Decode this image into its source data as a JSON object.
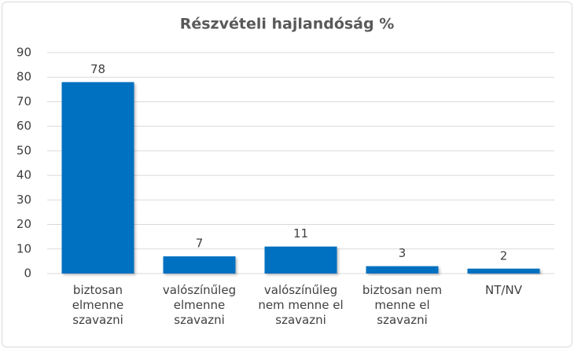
{
  "chart_data": {
    "type": "bar",
    "title": "Részvételi hajlandóság %",
    "categories": [
      "biztosan elmenne szavazni",
      "valószínűleg elmenne szavazni",
      "valószínűleg nem menne el szavazni",
      "biztosan nem menne el szavazni",
      "NT/NV"
    ],
    "values": [
      78,
      7,
      11,
      3,
      2
    ],
    "color": "#0070c0",
    "ylim": [
      0,
      90
    ],
    "yticks": [
      0,
      10,
      20,
      30,
      40,
      50,
      60,
      70,
      80,
      90
    ],
    "grid": true
  }
}
